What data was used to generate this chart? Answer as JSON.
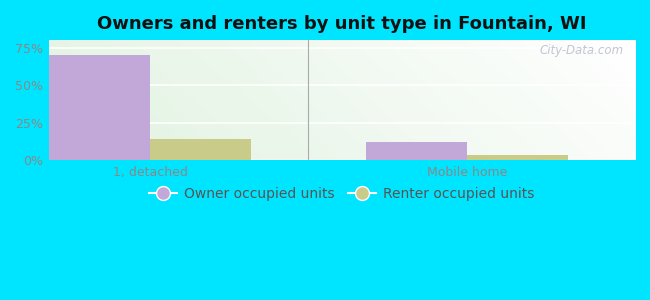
{
  "title": "Owners and renters by unit type in Fountain, WI",
  "categories": [
    "1, detached",
    "Mobile home"
  ],
  "owner_values": [
    70.0,
    12.0
  ],
  "renter_values": [
    14.0,
    3.5
  ],
  "owner_color": "#c2a8d8",
  "renter_color": "#c8cc88",
  "bar_width": 0.32,
  "ylim": [
    0,
    80
  ],
  "yticks": [
    0,
    25,
    50,
    75
  ],
  "ytick_labels": [
    "0%",
    "25%",
    "50%",
    "75%"
  ],
  "figure_bg": "#00e5ff",
  "grid_color": "#ffffff",
  "title_fontsize": 13,
  "tick_fontsize": 9,
  "legend_fontsize": 10,
  "watermark_text": "City-Data.com",
  "x_positions": [
    0.22,
    1.22
  ],
  "xlim": [
    -0.1,
    1.75
  ],
  "divider_x": 0.72
}
